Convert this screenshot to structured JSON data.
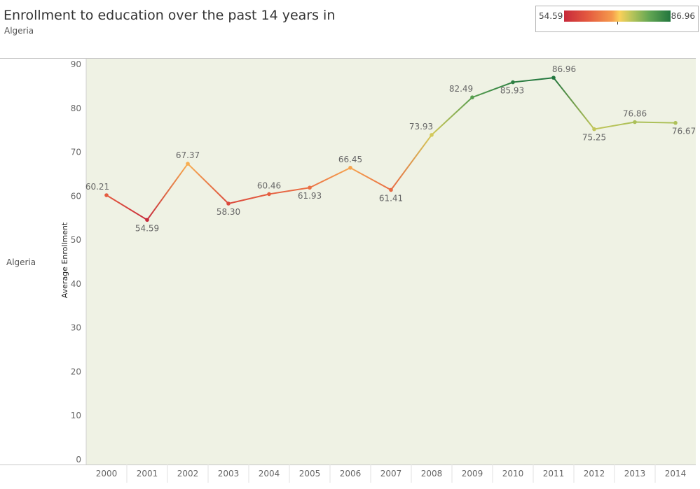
{
  "header": {
    "title": "Enrollment to education over the past 14 years in",
    "subtitle": "Algeria"
  },
  "legend": {
    "min_label": "54.59",
    "max_label": "86.96",
    "colors": [
      "#c7293a",
      "#e4593f",
      "#f59a4c",
      "#fbd05a",
      "#b6c45a",
      "#63a653",
      "#22763e"
    ]
  },
  "row_label": "Algeria",
  "chart_data": {
    "type": "line",
    "title": "Enrollment to education over the past 14 years in",
    "subtitle": "Algeria",
    "xlabel": "",
    "ylabel": "Average Enrollment",
    "x": [
      "2000",
      "2001",
      "2002",
      "2003",
      "2004",
      "2005",
      "2006",
      "2007",
      "2008",
      "2009",
      "2010",
      "2011",
      "2012",
      "2013",
      "2014"
    ],
    "series": [
      {
        "values": [
          60.21,
          54.59,
          67.37,
          58.3,
          60.46,
          61.93,
          66.45,
          61.41,
          73.93,
          82.49,
          85.93,
          86.96,
          75.25,
          76.86,
          76.67
        ],
        "labels": [
          "60.21",
          "54.59",
          "67.37",
          "58.30",
          "60.46",
          "61.93",
          "66.45",
          "61.41",
          "73.93",
          "82.49",
          "85.93",
          "86.96",
          "75.25",
          "76.86",
          "76.67"
        ]
      }
    ],
    "ylim": [
      0,
      90
    ],
    "yticks": [
      0,
      10,
      20,
      30,
      40,
      50,
      60,
      70,
      80,
      90
    ],
    "grid": false,
    "plot_background": "#eff2e4",
    "color_scale": {
      "min": 54.59,
      "max": 86.96,
      "colors": [
        "#c7293a",
        "#e4593f",
        "#f59a4c",
        "#fbd05a",
        "#b6c45a",
        "#63a653",
        "#22763e"
      ]
    }
  }
}
